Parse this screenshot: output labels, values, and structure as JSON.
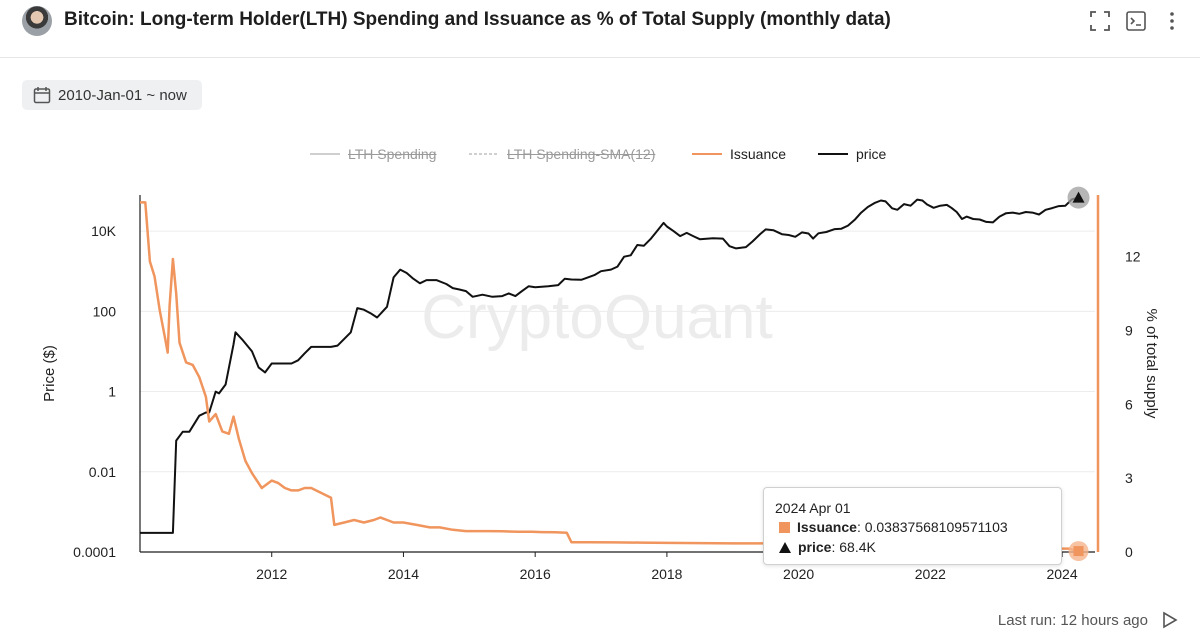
{
  "header": {
    "title": "Bitcoin: Long-term Holder(LTH) Spending and Issuance as % of Total Supply (monthly data)"
  },
  "date_range": {
    "label": "2010-Jan-01 ~ now"
  },
  "legend": [
    {
      "label": "LTH Spending",
      "active": false,
      "color": "#c8c8c8"
    },
    {
      "label": "LTH Spending-SMA(12)",
      "active": false,
      "color": "#c8c8c8"
    },
    {
      "label": "Issuance",
      "active": true,
      "color": "#f0955d"
    },
    {
      "label": "price",
      "active": true,
      "color": "#111111"
    }
  ],
  "watermark": "CryptoQuant",
  "tooltip": {
    "date": "2024 Apr 01",
    "issuance_label": "Issuance",
    "issuance_value": ": 0.03837568109571103",
    "price_label": "price",
    "price_value": ": 68.4K"
  },
  "footer": {
    "last_run": "Last run: 12 hours ago"
  },
  "colors": {
    "issuance": "#f0955d",
    "price": "#111111",
    "grid": "#ececec",
    "axis": "#1f1f1f"
  },
  "chart_data": {
    "type": "line",
    "title": "Bitcoin: Long-term Holder(LTH) Spending and Issuance as % of Total Supply (monthly data)",
    "x_ticks": [
      "2012",
      "2014",
      "2016",
      "2018",
      "2020",
      "2022",
      "2024"
    ],
    "x_range": [
      2010.0,
      2024.5
    ],
    "left_axis": {
      "label": "Price ($)",
      "scale": "log10",
      "ticks": [
        {
          "v": 0.0001,
          "label": "0.0001"
        },
        {
          "v": 0.01,
          "label": "0.01"
        },
        {
          "v": 1,
          "label": "1"
        },
        {
          "v": 100,
          "label": "100"
        },
        {
          "v": 10000,
          "label": "10K"
        }
      ],
      "range_log10": [
        -4,
        4.9
      ]
    },
    "right_axis": {
      "label": "% of total supply",
      "ticks": [
        0,
        3,
        6,
        9,
        12
      ],
      "range": [
        0,
        14.5
      ]
    },
    "series": [
      {
        "name": "price",
        "axis": "left",
        "points": [
          [
            2010.0,
            0.0003
          ],
          [
            2010.5,
            0.0003
          ],
          [
            2010.55,
            0.06
          ],
          [
            2010.65,
            0.1
          ],
          [
            2010.75,
            0.1
          ],
          [
            2010.9,
            0.25
          ],
          [
            2011.0,
            0.3
          ],
          [
            2011.05,
            0.3
          ],
          [
            2011.15,
            1
          ],
          [
            2011.2,
            0.9
          ],
          [
            2011.3,
            1.5
          ],
          [
            2011.42,
            15
          ],
          [
            2011.45,
            30
          ],
          [
            2011.55,
            20
          ],
          [
            2011.7,
            10
          ],
          [
            2011.8,
            4
          ],
          [
            2011.9,
            3
          ],
          [
            2012.0,
            5
          ],
          [
            2012.1,
            5
          ],
          [
            2012.2,
            5
          ],
          [
            2012.3,
            5
          ],
          [
            2012.4,
            6
          ],
          [
            2012.5,
            9
          ],
          [
            2012.6,
            13
          ],
          [
            2012.75,
            13
          ],
          [
            2012.9,
            13
          ],
          [
            2013.0,
            14
          ],
          [
            2013.2,
            30
          ],
          [
            2013.3,
            120
          ],
          [
            2013.4,
            110
          ],
          [
            2013.5,
            90
          ],
          [
            2013.6,
            70
          ],
          [
            2013.75,
            130
          ],
          [
            2013.85,
            700
          ],
          [
            2013.95,
            1100
          ],
          [
            2014.05,
            900
          ],
          [
            2014.15,
            650
          ],
          [
            2014.25,
            500
          ],
          [
            2014.35,
            600
          ],
          [
            2014.5,
            600
          ],
          [
            2014.65,
            480
          ],
          [
            2014.75,
            380
          ],
          [
            2014.85,
            350
          ],
          [
            2014.95,
            320
          ],
          [
            2015.05,
            230
          ],
          [
            2015.2,
            260
          ],
          [
            2015.35,
            230
          ],
          [
            2015.5,
            240
          ],
          [
            2015.6,
            280
          ],
          [
            2015.7,
            240
          ],
          [
            2015.8,
            320
          ],
          [
            2015.9,
            420
          ],
          [
            2016.0,
            400
          ],
          [
            2016.2,
            420
          ],
          [
            2016.35,
            450
          ],
          [
            2016.45,
            650
          ],
          [
            2016.55,
            620
          ],
          [
            2016.7,
            610
          ],
          [
            2016.8,
            700
          ],
          [
            2016.9,
            800
          ],
          [
            2017.0,
            1000
          ],
          [
            2017.15,
            1100
          ],
          [
            2017.25,
            1300
          ],
          [
            2017.35,
            2300
          ],
          [
            2017.45,
            2500
          ],
          [
            2017.55,
            4500
          ],
          [
            2017.65,
            4300
          ],
          [
            2017.75,
            6300
          ],
          [
            2017.85,
            10000
          ],
          [
            2017.95,
            16000
          ],
          [
            2018.0,
            13000
          ],
          [
            2018.1,
            10000
          ],
          [
            2018.2,
            7500
          ],
          [
            2018.3,
            9000
          ],
          [
            2018.4,
            7500
          ],
          [
            2018.5,
            6300
          ],
          [
            2018.7,
            6600
          ],
          [
            2018.85,
            6500
          ],
          [
            2018.95,
            4200
          ],
          [
            2019.05,
            3700
          ],
          [
            2019.2,
            4000
          ],
          [
            2019.3,
            5500
          ],
          [
            2019.42,
            8500
          ],
          [
            2019.5,
            11000
          ],
          [
            2019.62,
            10500
          ],
          [
            2019.75,
            8300
          ],
          [
            2019.85,
            8000
          ],
          [
            2019.95,
            7200
          ],
          [
            2020.05,
            9300
          ],
          [
            2020.15,
            8700
          ],
          [
            2020.22,
            6500
          ],
          [
            2020.3,
            8800
          ],
          [
            2020.42,
            9500
          ],
          [
            2020.55,
            11200
          ],
          [
            2020.65,
            11500
          ],
          [
            2020.75,
            13700
          ],
          [
            2020.85,
            19000
          ],
          [
            2020.95,
            29000
          ],
          [
            2021.05,
            40000
          ],
          [
            2021.15,
            50000
          ],
          [
            2021.25,
            58000
          ],
          [
            2021.32,
            55000
          ],
          [
            2021.42,
            37000
          ],
          [
            2021.5,
            34000
          ],
          [
            2021.6,
            47000
          ],
          [
            2021.7,
            43000
          ],
          [
            2021.8,
            61000
          ],
          [
            2021.88,
            58000
          ],
          [
            2021.95,
            46000
          ],
          [
            2022.05,
            38000
          ],
          [
            2022.15,
            43000
          ],
          [
            2022.25,
            45000
          ],
          [
            2022.32,
            38000
          ],
          [
            2022.4,
            30000
          ],
          [
            2022.48,
            20000
          ],
          [
            2022.55,
            23000
          ],
          [
            2022.65,
            20000
          ],
          [
            2022.75,
            19500
          ],
          [
            2022.85,
            17000
          ],
          [
            2022.95,
            16500
          ],
          [
            2023.05,
            23000
          ],
          [
            2023.15,
            28000
          ],
          [
            2023.25,
            29000
          ],
          [
            2023.35,
            27000
          ],
          [
            2023.45,
            30000
          ],
          [
            2023.55,
            29000
          ],
          [
            2023.65,
            26000
          ],
          [
            2023.75,
            34000
          ],
          [
            2023.85,
            37500
          ],
          [
            2023.95,
            42000
          ],
          [
            2024.05,
            43000
          ],
          [
            2024.15,
            62000
          ],
          [
            2024.25,
            68400
          ]
        ]
      },
      {
        "name": "Issuance",
        "axis": "right",
        "points": [
          [
            2010.0,
            14.2
          ],
          [
            2010.08,
            14.2
          ],
          [
            2010.15,
            11.8
          ],
          [
            2010.22,
            11.2
          ],
          [
            2010.3,
            9.8
          ],
          [
            2010.38,
            8.7
          ],
          [
            2010.42,
            8.1
          ],
          [
            2010.45,
            10.0
          ],
          [
            2010.5,
            11.9
          ],
          [
            2010.55,
            10.5
          ],
          [
            2010.6,
            8.5
          ],
          [
            2010.7,
            7.7
          ],
          [
            2010.8,
            7.6
          ],
          [
            2010.9,
            7.1
          ],
          [
            2011.0,
            6.3
          ],
          [
            2011.05,
            5.3
          ],
          [
            2011.15,
            5.6
          ],
          [
            2011.25,
            4.9
          ],
          [
            2011.35,
            4.8
          ],
          [
            2011.42,
            5.5
          ],
          [
            2011.5,
            4.6
          ],
          [
            2011.6,
            3.7
          ],
          [
            2011.7,
            3.2
          ],
          [
            2011.85,
            2.6
          ],
          [
            2012.0,
            2.9
          ],
          [
            2012.1,
            2.8
          ],
          [
            2012.2,
            2.6
          ],
          [
            2012.3,
            2.5
          ],
          [
            2012.4,
            2.5
          ],
          [
            2012.5,
            2.6
          ],
          [
            2012.6,
            2.6
          ],
          [
            2012.75,
            2.4
          ],
          [
            2012.9,
            2.2
          ],
          [
            2012.95,
            1.1
          ],
          [
            2013.1,
            1.2
          ],
          [
            2013.25,
            1.3
          ],
          [
            2013.4,
            1.2
          ],
          [
            2013.55,
            1.3
          ],
          [
            2013.65,
            1.4
          ],
          [
            2013.75,
            1.3
          ],
          [
            2013.85,
            1.2
          ],
          [
            2014.0,
            1.2
          ],
          [
            2014.2,
            1.1
          ],
          [
            2014.4,
            1.0
          ],
          [
            2014.55,
            1.0
          ],
          [
            2014.75,
            0.9
          ],
          [
            2014.95,
            0.85
          ],
          [
            2015.1,
            0.85
          ],
          [
            2015.3,
            0.85
          ],
          [
            2015.5,
            0.84
          ],
          [
            2015.75,
            0.82
          ],
          [
            2015.95,
            0.82
          ],
          [
            2016.1,
            0.81
          ],
          [
            2016.3,
            0.8
          ],
          [
            2016.48,
            0.78
          ],
          [
            2016.55,
            0.4
          ],
          [
            2016.8,
            0.4
          ],
          [
            2017.2,
            0.39
          ],
          [
            2017.6,
            0.38
          ],
          [
            2018.0,
            0.37
          ],
          [
            2018.5,
            0.36
          ],
          [
            2019.0,
            0.35
          ],
          [
            2019.5,
            0.35
          ],
          [
            2020.0,
            0.35
          ],
          [
            2020.3,
            0.34
          ],
          [
            2020.36,
            0.18
          ],
          [
            2020.8,
            0.17
          ],
          [
            2021.3,
            0.17
          ],
          [
            2021.8,
            0.16
          ],
          [
            2022.3,
            0.16
          ],
          [
            2022.8,
            0.15
          ],
          [
            2023.3,
            0.15
          ],
          [
            2023.8,
            0.14
          ],
          [
            2024.1,
            0.14
          ],
          [
            2024.25,
            0.038
          ]
        ]
      }
    ]
  }
}
